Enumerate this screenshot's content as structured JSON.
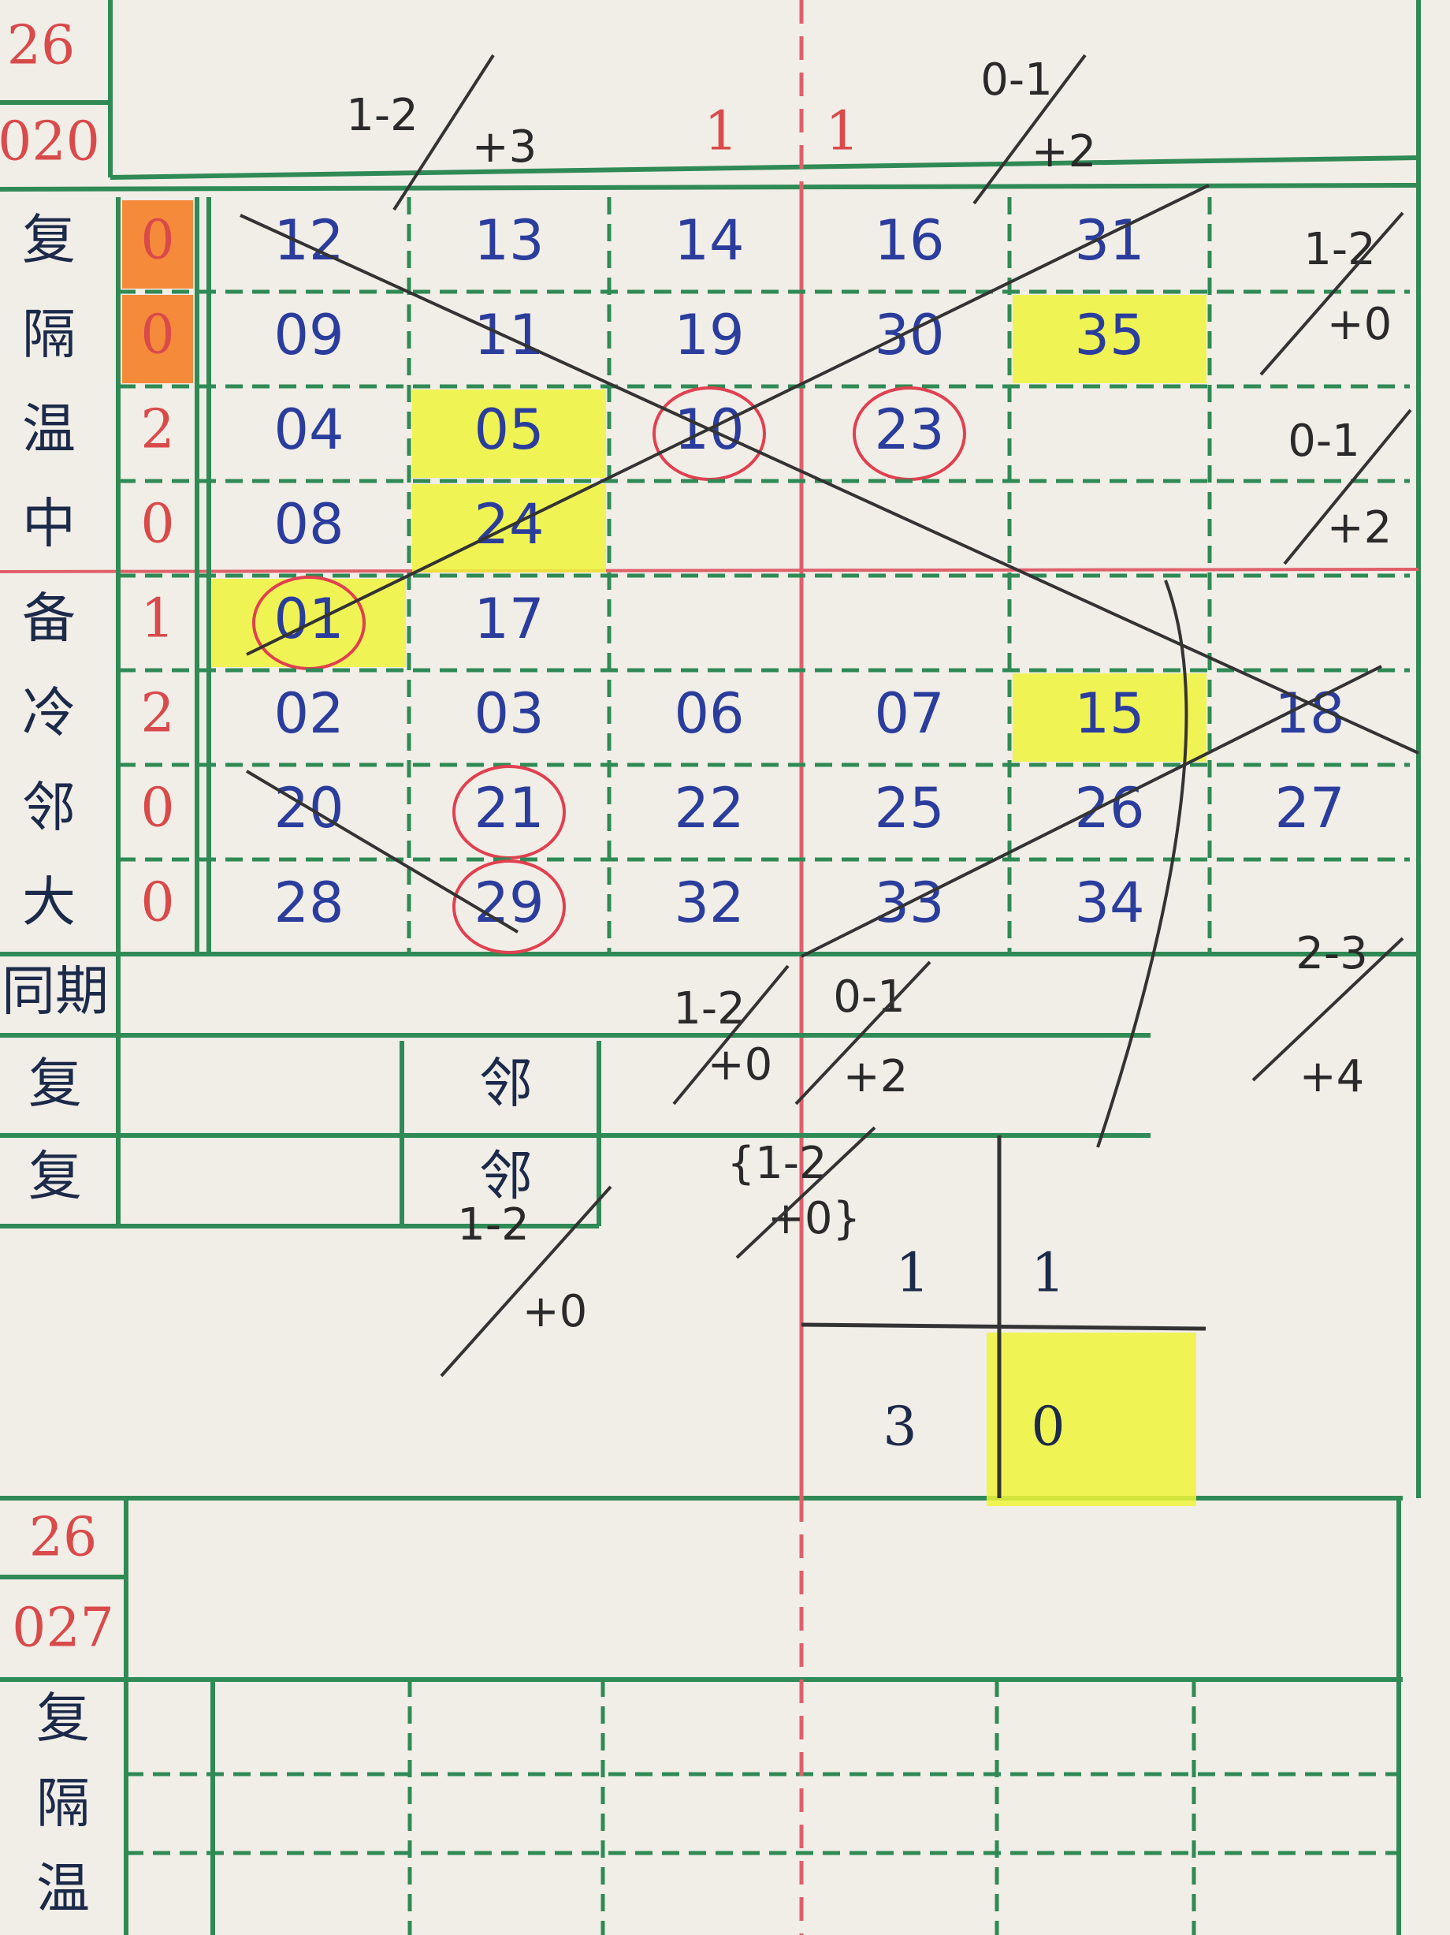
{
  "header": {
    "year": "26",
    "issue": "020",
    "texts": [
      "1-2",
      "+3",
      "1",
      "1",
      "0-1",
      "+2"
    ]
  },
  "grid": {
    "rows": [
      {
        "label": "复",
        "count": "0",
        "count_highlight": true,
        "cells": [
          {
            "text": "12"
          },
          {
            "text": "13"
          },
          {
            "text": "14"
          },
          {
            "text": "16"
          },
          {
            "text": "31"
          },
          null
        ]
      },
      {
        "label": "隔",
        "count": "0",
        "count_highlight": true,
        "cells": [
          {
            "text": "09"
          },
          {
            "text": "11"
          },
          {
            "text": "19"
          },
          {
            "text": "30"
          },
          {
            "text": "35",
            "highlight": true
          },
          null
        ]
      },
      {
        "label": "温",
        "count": "2",
        "cells": [
          {
            "text": "04"
          },
          {
            "text": "05",
            "highlight": true
          },
          {
            "text": "10",
            "circle": true
          },
          {
            "text": "23",
            "circle": true
          },
          null,
          null
        ]
      },
      {
        "label": "中",
        "count": "0",
        "cells": [
          {
            "text": "08"
          },
          {
            "text": "24",
            "highlight": true
          },
          null,
          null,
          null,
          null
        ]
      },
      {
        "label": "备",
        "count": "1",
        "cells": [
          {
            "text": "01",
            "highlight": true,
            "circle": true
          },
          {
            "text": "17"
          },
          null,
          null,
          null,
          null
        ]
      },
      {
        "label": "冷",
        "count": "2",
        "cells": [
          {
            "text": "02"
          },
          {
            "text": "03"
          },
          {
            "text": "06"
          },
          {
            "text": "07"
          },
          {
            "text": "15",
            "highlight": true
          },
          {
            "text": "18"
          }
        ]
      },
      {
        "label": "邻",
        "count": "0",
        "cells": [
          {
            "text": "20"
          },
          {
            "text": "21",
            "circle": true
          },
          {
            "text": "22"
          },
          {
            "text": "25"
          },
          {
            "text": "26"
          },
          {
            "text": "27"
          }
        ]
      },
      {
        "label": "大",
        "count": "0",
        "cells": [
          {
            "text": "28"
          },
          {
            "text": "29",
            "circle": true
          },
          {
            "text": "32"
          },
          {
            "text": "33"
          },
          {
            "text": "34"
          },
          null
        ]
      }
    ]
  },
  "side_notes": [
    "1-2",
    "+0",
    "0-1",
    "+2",
    "2-3",
    "+4"
  ],
  "lower": {
    "rows": [
      {
        "label": "同期"
      },
      {
        "label": "复",
        "middle": "邻"
      },
      {
        "label": "复",
        "middle": "邻"
      }
    ],
    "notes": [
      "1-2",
      "+0",
      "0-1",
      "+2",
      "{1-2",
      "+0}",
      "1-2",
      "+0"
    ],
    "box": [
      "1",
      "1",
      "3",
      "0"
    ]
  },
  "next": {
    "year": "26",
    "issue": "027",
    "labels": [
      "复",
      "隔",
      "温"
    ]
  }
}
